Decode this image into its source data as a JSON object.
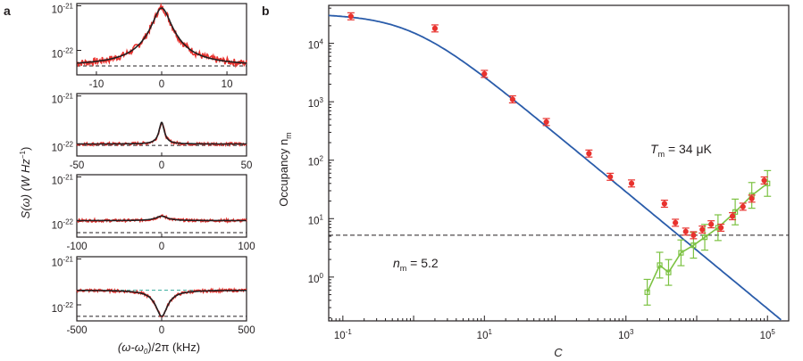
{
  "colors": {
    "data_red": "#e8322e",
    "fit_black": "#231f20",
    "fit_blue": "#2a5caa",
    "data_green": "#7cc242",
    "dashed_black": "#231f20",
    "dashed_teal": "#4bb3a6"
  },
  "chart_data": [
    {
      "id": "a",
      "panel_label": "a",
      "type": "line",
      "ylabel": "S(ω)  (W Hz",
      "ylabel_sup": "−1",
      "ylabel_close": ")",
      "xlabel_parts": [
        "(ω-ω",
        "0",
        ")/2π (kHz)"
      ],
      "yscale": "log",
      "subplots": [
        {
          "xlim": [
            -13,
            13
          ],
          "xticks": [
            -10,
            0,
            10
          ],
          "xtick_labels": [
            "-10",
            "0",
            "10"
          ],
          "ylim_exp": [
            -22.55,
            -20.95
          ],
          "yticks_exp": [
            -21,
            -22
          ],
          "ytick_labels": [
            "10",
            "10"
          ],
          "ytick_sups": [
            "-21",
            "-22"
          ],
          "background_exp": -22.35,
          "peak_exp": -21.05,
          "linewidth_khz": 1.2,
          "noise_exp": 0.08,
          "dip": false,
          "dashed_exp": -22.35
        },
        {
          "xlim": [
            -50,
            50
          ],
          "xticks": [
            -50,
            0,
            50
          ],
          "xtick_labels": [
            "-50",
            "0",
            "50"
          ],
          "ylim_exp": [
            -22.25,
            -20.95
          ],
          "yticks_exp": [
            -21,
            -22
          ],
          "ytick_labels": [
            "10",
            "10"
          ],
          "ytick_sups": [
            "-21",
            "-22"
          ],
          "background_exp": -22.0,
          "peak_exp": -21.55,
          "linewidth_khz": 1.5,
          "noise_exp": 0.03,
          "dip": false,
          "dashed_exp": -22.03
        },
        {
          "xlim": [
            -100,
            100
          ],
          "xticks": [
            -100,
            0,
            100
          ],
          "xtick_labels": [
            "-100",
            "0",
            "100"
          ],
          "ylim_exp": [
            -22.35,
            -20.95
          ],
          "yticks_exp": [
            -21,
            -22
          ],
          "ytick_labels": [
            "10",
            "10"
          ],
          "ytick_sups": [
            "-21",
            "-22"
          ],
          "background_exp": -21.98,
          "peak_exp": -21.88,
          "linewidth_khz": 8,
          "noise_exp": 0.03,
          "dip": false,
          "dashed_exp": -22.25
        },
        {
          "xlim": [
            -500,
            500
          ],
          "xticks": [
            -500,
            0,
            500
          ],
          "xtick_labels": [
            "-500",
            "0",
            "500"
          ],
          "ylim_exp": [
            -22.35,
            -20.95
          ],
          "yticks_exp": [
            -21,
            -22
          ],
          "ytick_labels": [
            "10",
            "10"
          ],
          "ytick_sups": [
            "-21",
            "-22"
          ],
          "background_exp": -21.68,
          "peak_exp": -22.25,
          "linewidth_khz": 60,
          "noise_exp": 0.03,
          "dip": true,
          "dashed_exp": -22.25,
          "dashed_teal_exp": -21.68
        }
      ]
    },
    {
      "id": "b",
      "panel_label": "b",
      "type": "scatter",
      "xscale": "log",
      "yscale": "log",
      "xlim_exp": [
        -1.2,
        5.3
      ],
      "ylim_exp": [
        -0.75,
        4.65
      ],
      "xlabel": "C",
      "ylabel": "Occupancy n",
      "ylabel_sub": "m",
      "xtick_exps": [
        -1,
        1,
        3,
        5
      ],
      "xtick_labels": [
        "10",
        "10",
        "10",
        "10"
      ],
      "xtick_sups": [
        "-1",
        "1",
        "3",
        "5"
      ],
      "ytick_exps": [
        0,
        1,
        2,
        3,
        4
      ],
      "ytick_labels": [
        "10",
        "10",
        "10",
        "10",
        "10"
      ],
      "ytick_sups": [
        "0",
        "1",
        "2",
        "3",
        "4"
      ],
      "annotation_T": "T",
      "annotation_T_sub": "m",
      "annotation_T_value": " = 34 μK",
      "annotation_n": "n",
      "annotation_n_sub": "m",
      "annotation_n_value": " = 5.2",
      "dashed_y": 5.2,
      "fit_T_uK": 34,
      "fit_n_max": 32000,
      "series_red": {
        "name": "",
        "x": [
          0.13,
          2.0,
          10,
          25,
          75,
          300,
          600,
          1200,
          3500,
          5000,
          7000,
          9000,
          12000,
          16000,
          22000,
          32000,
          45000,
          60000
        ],
        "y": [
          29000,
          18000,
          3000,
          1100,
          450,
          130,
          52,
          40,
          18,
          8.5,
          6.0,
          5.2,
          6.5,
          8.0,
          7.0,
          11,
          16,
          22
        ],
        "y_extra_x": [
          90000
        ],
        "y_extra": [
          45
        ]
      },
      "series_green": {
        "name": "",
        "x": [
          2000,
          3000,
          4000,
          6000,
          9000,
          13000,
          20000,
          35000,
          60000
        ],
        "y": [
          0.55,
          1.6,
          1.2,
          2.6,
          3.5,
          4.8,
          7.0,
          13,
          25
        ],
        "y_extra_x": [
          100000
        ],
        "y_extra": [
          40
        ]
      }
    }
  ]
}
